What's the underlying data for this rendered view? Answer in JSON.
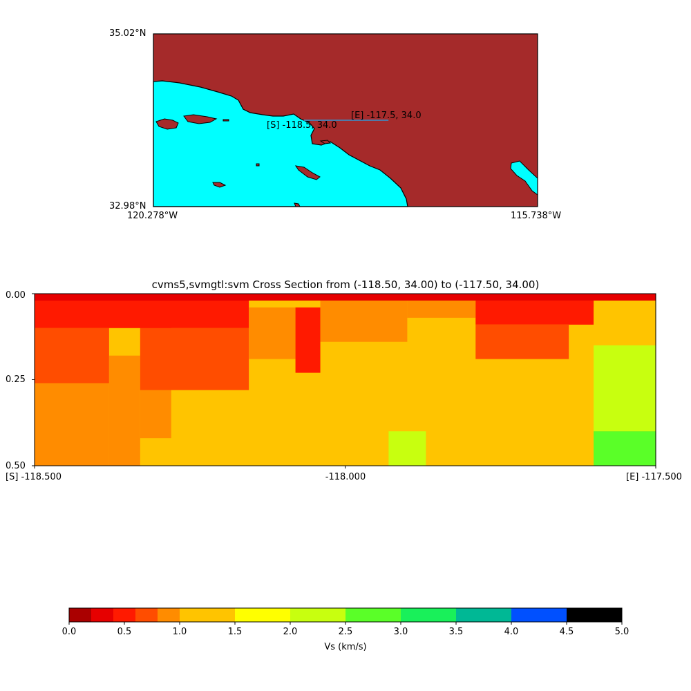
{
  "colors": {
    "land": "#a52a2a",
    "water": "#00ffff",
    "line": "#4f79a8",
    "palette": [
      "#aa0000",
      "#e60000",
      "#ff1a00",
      "#ff4d00",
      "#ff8c00",
      "#ffc400",
      "#ffff00",
      "#c8ff0f",
      "#5aff28",
      "#19f05a",
      "#00b895",
      "#0050ff"
    ]
  },
  "map": {
    "lat_top": "35.02°N",
    "lat_bottom": "32.98°N",
    "lon_left": "120.278°W",
    "lon_right": "115.738°W",
    "extent": {
      "lon_min": -120.278,
      "lon_max": -115.738,
      "lat_min": 32.98,
      "lat_max": 35.02
    },
    "start_label": "[S] -118.5, 34.0",
    "end_label": "[E] -117.5, 34.0",
    "start": {
      "lon": -118.5,
      "lat": 34.0
    },
    "end": {
      "lon": -117.5,
      "lat": 34.0
    }
  },
  "chart_data": {
    "type": "heatmap",
    "title": "cvms5,svmgtl:svm Cross Section from (-118.50, 34.00) to (-117.50, 34.00)",
    "x_tick_labels": [
      "[S] -118.500",
      "-118.000",
      "[E] -117.500"
    ],
    "x_ticks": [
      -118.5,
      -118.0,
      -117.5
    ],
    "xlim": [
      -118.5,
      -117.5
    ],
    "y_tick_labels": [
      "0.00",
      "0.25",
      "0.50"
    ],
    "y_ticks": [
      0.0,
      0.25,
      0.5
    ],
    "ylim": [
      0.5,
      0.0
    ],
    "colorbar": {
      "label": "Vs (km/s)",
      "boundaries": [
        0.0,
        0.2,
        0.4,
        0.6,
        0.8,
        1.0,
        1.5,
        2.0,
        2.5,
        3.0,
        3.5,
        4.0,
        4.5,
        5.0
      ],
      "tick_labels": [
        "0.0",
        "0.5",
        "1.0",
        "1.5",
        "2.0",
        "2.5",
        "3.0",
        "3.5",
        "4.0",
        "4.5",
        "5.0"
      ],
      "ticks": [
        0.0,
        0.5,
        1.0,
        1.5,
        2.0,
        2.5,
        3.0,
        3.5,
        4.0,
        4.5,
        5.0
      ]
    },
    "regions": [
      {
        "x": [
          -118.5,
          -117.5
        ],
        "depth": [
          0.0,
          0.5
        ],
        "vs": 1.25
      },
      {
        "x": [
          -118.5,
          -118.38
        ],
        "depth": [
          0.26,
          0.5
        ],
        "vs": 0.9
      },
      {
        "x": [
          -118.5,
          -118.38
        ],
        "depth": [
          0.1,
          0.26
        ],
        "vs": 0.7
      },
      {
        "x": [
          -118.38,
          -118.33
        ],
        "depth": [
          0.18,
          0.5
        ],
        "vs": 0.9
      },
      {
        "x": [
          -118.33,
          -118.28
        ],
        "depth": [
          0.28,
          0.42
        ],
        "vs": 0.9
      },
      {
        "x": [
          -118.5,
          -118.28
        ],
        "depth": [
          0.0,
          0.1
        ],
        "vs": 0.5
      },
      {
        "x": [
          -118.33,
          -118.155
        ],
        "depth": [
          0.1,
          0.28
        ],
        "vs": 0.7
      },
      {
        "x": [
          -118.33,
          -118.155
        ],
        "depth": [
          0.0,
          0.1
        ],
        "vs": 0.5
      },
      {
        "x": [
          -118.155,
          -118.08
        ],
        "depth": [
          0.04,
          0.19
        ],
        "vs": 0.9
      },
      {
        "x": [
          -118.08,
          -118.04
        ],
        "depth": [
          0.04,
          0.23
        ],
        "vs": 0.5
      },
      {
        "x": [
          -118.04,
          -117.9
        ],
        "depth": [
          0.02,
          0.14
        ],
        "vs": 0.9
      },
      {
        "x": [
          -117.9,
          -117.79
        ],
        "depth": [
          0.02,
          0.07
        ],
        "vs": 0.9
      },
      {
        "x": [
          -117.79,
          -117.6
        ],
        "depth": [
          0.02,
          0.09
        ],
        "vs": 0.5
      },
      {
        "x": [
          -117.79,
          -117.64
        ],
        "depth": [
          0.09,
          0.19
        ],
        "vs": 0.7
      },
      {
        "x": [
          -118.5,
          -117.5
        ],
        "depth": [
          0.0,
          0.02
        ],
        "vs": 0.3
      },
      {
        "x": [
          -117.6,
          -117.5
        ],
        "depth": [
          0.04,
          0.15
        ],
        "vs": 1.25
      },
      {
        "x": [
          -117.6,
          -117.5
        ],
        "depth": [
          0.15,
          0.4
        ],
        "vs": 2.0
      },
      {
        "x": [
          -117.6,
          -117.5
        ],
        "depth": [
          0.4,
          0.5
        ],
        "vs": 2.75
      },
      {
        "x": [
          -117.93,
          -117.87
        ],
        "depth": [
          0.4,
          0.5
        ],
        "vs": 2.0
      }
    ]
  }
}
